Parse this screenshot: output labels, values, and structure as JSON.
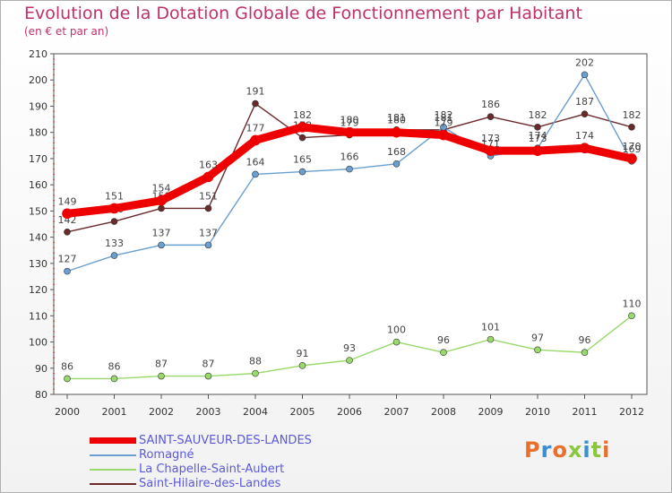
{
  "title": "Evolution de la Dotation Globale de Fonctionnement par Habitant",
  "subtitle": "(en € et par an)",
  "logo_text": "Proxiti",
  "chart_data": {
    "type": "line",
    "title": "Evolution de la Dotation Globale de Fonctionnement par Habitant",
    "subtitle": "(en € et par an)",
    "xlabel": "",
    "ylabel": "",
    "x": [
      "2000",
      "2001",
      "2002",
      "2003",
      "2004",
      "2005",
      "2006",
      "2007",
      "2008",
      "2009",
      "2010",
      "2011",
      "2012"
    ],
    "yticks": [
      80,
      90,
      100,
      110,
      120,
      130,
      140,
      150,
      160,
      170,
      180,
      190,
      200,
      210
    ],
    "ylim": [
      80,
      210
    ],
    "grid": false,
    "legend_position": "bottom-left",
    "series": [
      {
        "name": "Saint-Hilaire-des-Landes",
        "color": "#6b2a2a",
        "values": [
          142,
          146,
          151,
          151,
          191,
          178,
          179,
          181,
          181,
          186,
          182,
          187,
          182
        ]
      },
      {
        "name": "Romagné",
        "color": "#6a9fd0",
        "values": [
          127,
          133,
          137,
          137,
          164,
          165,
          166,
          168,
          182,
          171,
          174,
          202,
          169
        ]
      },
      {
        "name": "La Chapelle-Saint-Aubert",
        "color": "#99d86a",
        "values": [
          86,
          86,
          87,
          87,
          88,
          91,
          93,
          100,
          96,
          101,
          97,
          96,
          110
        ]
      },
      {
        "name": "SAINT-SAUVEUR-DES-LANDES",
        "color": "#ee0000",
        "values": [
          149,
          151,
          154,
          163,
          177,
          182,
          180,
          180,
          179,
          173,
          173,
          174,
          170
        ]
      }
    ],
    "legend_order": [
      "SAINT-SAUVEUR-DES-LANDES",
      "Romagné",
      "La Chapelle-Saint-Aubert",
      "Saint-Hilaire-des-Landes"
    ]
  }
}
